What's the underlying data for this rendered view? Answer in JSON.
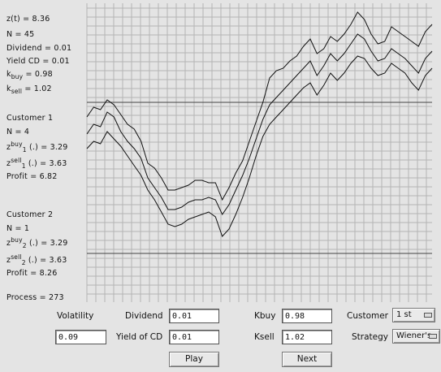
{
  "stats": {
    "zt": "z(t) = 8.36",
    "n": "N =   45",
    "dividend": "Dividend = 0.01",
    "yield_cd": "Yield CD = 0.01",
    "kbuy_prefix": "k",
    "kbuy_sub": "buy",
    "kbuy_value": " = 0.98",
    "ksell_prefix": "k",
    "ksell_sub": "sell",
    "ksell_value": " = 1.02"
  },
  "customer1": {
    "title": "Customer 1",
    "n": "N = 4",
    "zbuy_prefix": "z",
    "zbuy_sup": "buy",
    "zbuy_sub": "1",
    "zbuy_value": " (.) = 3.29",
    "zsell_prefix": "z",
    "zsell_sup": "sell",
    "zsell_sub": "1",
    "zsell_value": " (.) = 3.63",
    "profit": "Profit = 6.82"
  },
  "customer2": {
    "title": "Customer 2",
    "n": "N = 1",
    "zbuy_prefix": "z",
    "zbuy_sup": "buy",
    "zbuy_sub": "2",
    "zbuy_value": " (.) = 3.29",
    "zsell_prefix": "z",
    "zsell_sup": "sell",
    "zsell_sub": "2",
    "zsell_value": " (.) = 3.63",
    "profit": "Profit = 8.26"
  },
  "process": "Process = 273",
  "controls": {
    "volatility_label": "Volatility",
    "volatility_value": "0.09",
    "dividend_label": "Dividend",
    "dividend_value": "0.01",
    "yield_label": "Yield of CD",
    "yield_value": "0.01",
    "kbuy_label": "Kbuy",
    "kbuy_value": "0.98",
    "ksell_label": "Ksell",
    "ksell_value": "1.02",
    "customer_label": "Customer",
    "customer_value": "1 st",
    "strategy_label": "Strategy",
    "strategy_value": "Wiener's",
    "play_label": "Play",
    "next_label": "Next"
  },
  "colors": {
    "background": "#e4e4e4",
    "grid": "#b4b4b4",
    "line": "#111111"
  },
  "chart_data": {
    "type": "line",
    "x_steps": 45,
    "y_range": [
      0,
      10
    ],
    "reference_levels": [
      6.8,
      0.6
    ],
    "series": [
      {
        "values": [
          6.2,
          6.6,
          6.5,
          6.9,
          6.7,
          6.3,
          5.9,
          5.7,
          5.2,
          4.3,
          4.1,
          3.7,
          3.2,
          3.2,
          3.3,
          3.4,
          3.6,
          3.6,
          3.5,
          3.5,
          2.8,
          3.3,
          3.9,
          4.4,
          5.2,
          6.0,
          6.8,
          7.8,
          8.1,
          8.2,
          8.5,
          8.7,
          9.1,
          9.4,
          8.8,
          9.0,
          9.5,
          9.3,
          9.6,
          10.0,
          10.5,
          10.2,
          9.6,
          9.2,
          9.3,
          9.9,
          9.7,
          9.5,
          9.3,
          9.1,
          9.7,
          10.0
        ]
      },
      {
        "values": [
          5.5,
          5.9,
          5.8,
          6.4,
          6.2,
          5.6,
          5.2,
          4.9,
          4.5,
          3.7,
          3.3,
          2.9,
          2.4,
          2.4,
          2.5,
          2.7,
          2.8,
          2.8,
          2.9,
          2.8,
          2.2,
          2.6,
          3.2,
          3.8,
          4.5,
          5.3,
          6.1,
          6.7,
          7.0,
          7.3,
          7.6,
          7.9,
          8.2,
          8.5,
          7.9,
          8.3,
          8.8,
          8.5,
          8.8,
          9.2,
          9.6,
          9.4,
          8.9,
          8.5,
          8.6,
          9.0,
          8.8,
          8.6,
          8.3,
          8.0,
          8.6,
          8.9
        ]
      },
      {
        "values": [
          4.9,
          5.2,
          5.1,
          5.6,
          5.3,
          5.0,
          4.6,
          4.2,
          3.8,
          3.2,
          2.8,
          2.3,
          1.8,
          1.7,
          1.8,
          2.0,
          2.1,
          2.2,
          2.3,
          2.1,
          1.3,
          1.6,
          2.2,
          2.9,
          3.7,
          4.6,
          5.4,
          5.9,
          6.2,
          6.5,
          6.8,
          7.1,
          7.4,
          7.6,
          7.1,
          7.5,
          8.0,
          7.7,
          8.0,
          8.4,
          8.7,
          8.6,
          8.2,
          7.9,
          8.0,
          8.4,
          8.2,
          8.0,
          7.6,
          7.3,
          7.9,
          8.2
        ]
      }
    ]
  }
}
